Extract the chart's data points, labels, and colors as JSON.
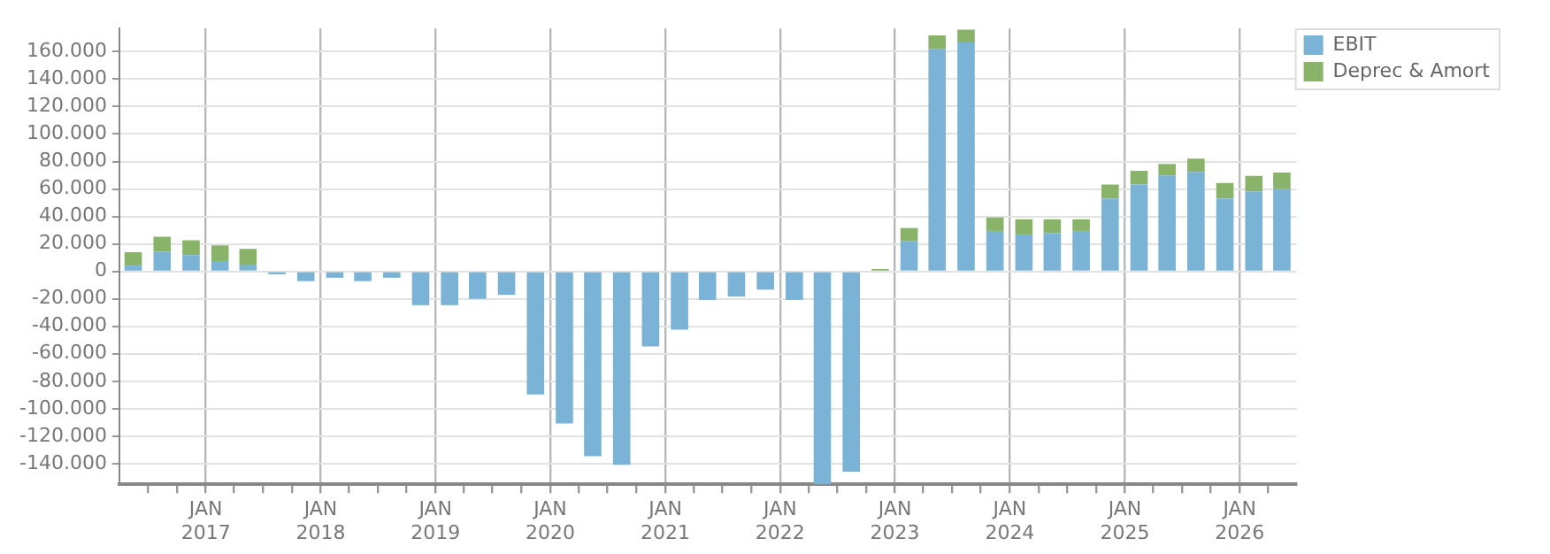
{
  "chart_data": {
    "type": "bar",
    "stacked": true,
    "x": [
      "2016-05-15",
      "2016-08-15",
      "2016-11-15",
      "2017-02-15",
      "2017-05-15",
      "2017-08-15",
      "2017-11-15",
      "2018-02-15",
      "2018-05-15",
      "2018-08-15",
      "2018-11-15",
      "2019-02-15",
      "2019-05-15",
      "2019-08-15",
      "2019-11-15",
      "2020-02-15",
      "2020-05-15",
      "2020-08-15",
      "2020-11-15",
      "2021-02-15",
      "2021-05-15",
      "2021-08-15",
      "2021-11-15",
      "2022-02-15",
      "2022-05-15",
      "2022-08-15",
      "2022-11-15",
      "2023-02-15",
      "2023-05-15",
      "2023-08-15",
      "2023-11-15",
      "2024-02-15",
      "2024-05-15",
      "2024-08-15",
      "2024-11-15",
      "2025-02-15",
      "2025-05-15",
      "2025-08-15",
      "2025-11-15",
      "2026-02-15",
      "2026-05-15"
    ],
    "series": [
      {
        "name": "EBIT",
        "color": "#7ab3d5",
        "values": [
          4200,
          14300,
          11800,
          7600,
          5000,
          -2100,
          -7100,
          -4600,
          -7100,
          -4600,
          -24600,
          -24600,
          -20000,
          -17100,
          -89600,
          -110800,
          -134600,
          -140800,
          -54600,
          -42500,
          -20800,
          -18300,
          -13300,
          -20800,
          -155000,
          -145800,
          0,
          21900,
          161700,
          166700,
          29500,
          26900,
          27800,
          29500,
          53000,
          63200,
          69900,
          72400,
          53000,
          58100,
          59800
        ]
      },
      {
        "name": "Deprec & Amort",
        "color": "#8ab36a",
        "values": [
          9700,
          11000,
          10900,
          11300,
          11400,
          0,
          0,
          0,
          0,
          0,
          0,
          0,
          0,
          0,
          0,
          0,
          0,
          0,
          0,
          0,
          0,
          0,
          0,
          0,
          0,
          0,
          1700,
          9700,
          10100,
          9300,
          9700,
          11000,
          10100,
          8400,
          10200,
          10100,
          8400,
          9700,
          11400,
          11400,
          12200
        ]
      }
    ],
    "xlim": [
      "2016-04-01",
      "2026-07-01"
    ],
    "xticks": [
      {
        "value": "2016-07-01",
        "label": null
      },
      {
        "value": "2016-10-01",
        "label": null
      },
      {
        "value": "2017-01-01",
        "label": "JAN 2017"
      },
      {
        "value": "2017-04-01",
        "label": null
      },
      {
        "value": "2017-07-01",
        "label": null
      },
      {
        "value": "2017-10-01",
        "label": null
      },
      {
        "value": "2018-01-01",
        "label": "JAN 2018"
      },
      {
        "value": "2018-04-01",
        "label": null
      },
      {
        "value": "2018-07-01",
        "label": null
      },
      {
        "value": "2018-10-01",
        "label": null
      },
      {
        "value": "2019-01-01",
        "label": "JAN 2019"
      },
      {
        "value": "2019-04-01",
        "label": null
      },
      {
        "value": "2019-07-01",
        "label": null
      },
      {
        "value": "2019-10-01",
        "label": null
      },
      {
        "value": "2020-01-01",
        "label": "JAN 2020"
      },
      {
        "value": "2020-04-01",
        "label": null
      },
      {
        "value": "2020-07-01",
        "label": null
      },
      {
        "value": "2020-10-01",
        "label": null
      },
      {
        "value": "2021-01-01",
        "label": "JAN 2021"
      },
      {
        "value": "2021-04-01",
        "label": null
      },
      {
        "value": "2021-07-01",
        "label": null
      },
      {
        "value": "2021-10-01",
        "label": null
      },
      {
        "value": "2022-01-01",
        "label": "JAN 2022"
      },
      {
        "value": "2022-04-01",
        "label": null
      },
      {
        "value": "2022-07-01",
        "label": null
      },
      {
        "value": "2022-10-01",
        "label": null
      },
      {
        "value": "2023-01-01",
        "label": "JAN 2023"
      },
      {
        "value": "2023-04-01",
        "label": null
      },
      {
        "value": "2023-07-01",
        "label": null
      },
      {
        "value": "2023-10-01",
        "label": null
      },
      {
        "value": "2024-01-01",
        "label": "JAN 2024"
      },
      {
        "value": "2024-04-01",
        "label": null
      },
      {
        "value": "2024-07-01",
        "label": null
      },
      {
        "value": "2024-10-01",
        "label": null
      },
      {
        "value": "2025-01-01",
        "label": "JAN 2025"
      },
      {
        "value": "2025-04-01",
        "label": null
      },
      {
        "value": "2025-07-01",
        "label": null
      },
      {
        "value": "2025-10-01",
        "label": null
      },
      {
        "value": "2026-01-01",
        "label": "JAN 2026"
      },
      {
        "value": "2026-04-01",
        "label": null
      }
    ],
    "ylim": [
      -155000,
      177000
    ],
    "yticks": [
      {
        "value": -140000,
        "label": "-140.000"
      },
      {
        "value": -120000,
        "label": "-120.000"
      },
      {
        "value": -100000,
        "label": "-100.000"
      },
      {
        "value": -80000,
        "label": "-80.000"
      },
      {
        "value": -60000,
        "label": "-60.000"
      },
      {
        "value": -40000,
        "label": "-40.000"
      },
      {
        "value": -20000,
        "label": "-20.000"
      },
      {
        "value": 0,
        "label": "0"
      },
      {
        "value": 20000,
        "label": "20.000"
      },
      {
        "value": 40000,
        "label": "40.000"
      },
      {
        "value": 60000,
        "label": "60.000"
      },
      {
        "value": 80000,
        "label": "80.000"
      },
      {
        "value": 100000,
        "label": "100.000"
      },
      {
        "value": 120000,
        "label": "120.000"
      },
      {
        "value": 140000,
        "label": "140.000"
      },
      {
        "value": 160000,
        "label": "160.000"
      }
    ],
    "grid": true,
    "legend": "top right"
  }
}
